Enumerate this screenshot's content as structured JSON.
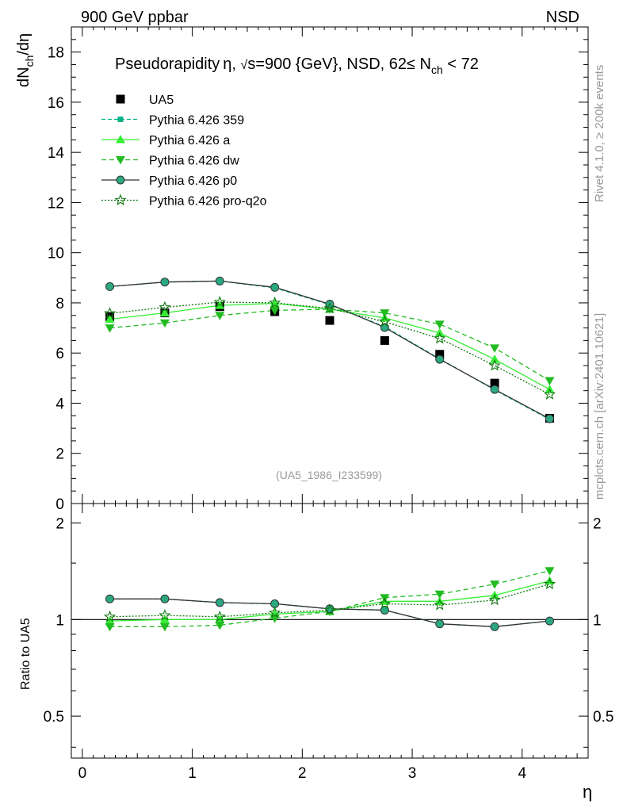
{
  "header": {
    "left": "900 GeV ppbar",
    "right": "NSD"
  },
  "side": {
    "rivet": "Rivet 4.1.0, ≥ 200k events",
    "mcplots": "mcplots.cern.ch [arXiv:2401.10621]"
  },
  "chart_data": [
    {
      "type": "line",
      "panel": "main",
      "title": "Pseudorapidity η, √s=900 {GeV}, NSD, 62≤ N_ch < 72",
      "title_parts": {
        "prefix": "Pseudorapidity η, ",
        "sqrt": "√",
        "mid": "s=900 {GeV}, NSD, 62≤ N",
        "sub": "ch",
        "suffix": " < 72"
      },
      "ylabel": "dN_ch/dη",
      "ylabel_parts": {
        "a": "dN",
        "sub": "ch",
        "b": "/dη"
      },
      "xlabel": "η",
      "annotation": "(UA5_1986_I233599)",
      "xlim": [
        -0.1,
        4.6
      ],
      "ylim": [
        0,
        19
      ],
      "x_ticks": [
        0,
        1,
        2,
        3,
        4
      ],
      "y_ticks": [
        0,
        2,
        4,
        6,
        8,
        10,
        12,
        14,
        16,
        18
      ],
      "x_tick_labels": [
        "0",
        "1",
        "2",
        "3",
        "4"
      ],
      "y_tick_labels": [
        "0",
        "2",
        "4",
        "6",
        "8",
        "10",
        "12",
        "14",
        "16",
        "18"
      ],
      "x": [
        0.25,
        0.75,
        1.25,
        1.75,
        2.25,
        2.75,
        3.25,
        3.75,
        4.25
      ],
      "series": [
        {
          "name": "UA5",
          "kind": "data",
          "color": "#000000",
          "marker": "square",
          "values": [
            7.45,
            7.6,
            7.85,
            7.65,
            7.3,
            6.5,
            5.95,
            4.8,
            3.4
          ]
        },
        {
          "name": "Pythia 6.426 359",
          "color": "#00b386",
          "marker": "square-small",
          "dash": "5,3",
          "values": [
            8.65,
            8.83,
            8.87,
            8.6,
            7.93,
            7.05,
            5.77,
            4.53,
            3.35
          ]
        },
        {
          "name": "Pythia 6.426 a",
          "color": "#33ee33",
          "marker": "triangle-up",
          "dash": "",
          "values": [
            7.35,
            7.6,
            7.9,
            7.98,
            7.75,
            7.4,
            6.8,
            5.75,
            4.55
          ]
        },
        {
          "name": "Pythia 6.426 dw",
          "color": "#22bb22",
          "marker": "triangle-down",
          "dash": "6,4",
          "values": [
            7.0,
            7.2,
            7.5,
            7.7,
            7.75,
            7.6,
            7.15,
            6.2,
            4.9
          ]
        },
        {
          "name": "Pythia 6.426 p0",
          "color": "#333333",
          "marker": "circle-open",
          "dash": "",
          "values": [
            8.65,
            8.83,
            8.87,
            8.62,
            7.95,
            7.02,
            5.75,
            4.55,
            3.38
          ]
        },
        {
          "name": "Pythia 6.426 pro-q2o",
          "color": "#117711",
          "marker": "star",
          "dash": "2,2",
          "values": [
            7.58,
            7.82,
            8.03,
            8.0,
            7.78,
            7.25,
            6.58,
            5.5,
            4.35
          ]
        }
      ]
    },
    {
      "type": "line",
      "panel": "ratio",
      "ylabel": "Ratio to UA5",
      "xlim": [
        -0.1,
        4.6
      ],
      "ylim": [
        0.37,
        2.3
      ],
      "y_scale": "log",
      "y_ticks": [
        0.5,
        1,
        2
      ],
      "y_tick_labels": [
        "0.5",
        "1",
        "2"
      ],
      "reference": 1,
      "x": [
        0.25,
        0.75,
        1.25,
        1.75,
        2.25,
        2.75,
        3.25,
        3.75,
        4.25
      ],
      "series": [
        {
          "name": "Pythia 6.426 359",
          "color": "#00b386",
          "marker": "square-small",
          "dash": "5,3",
          "values": [
            1.16,
            1.16,
            1.13,
            1.12,
            1.08,
            1.07,
            0.97,
            0.95,
            0.99
          ]
        },
        {
          "name": "Pythia 6.426 a",
          "color": "#33ee33",
          "marker": "triangle-up",
          "dash": "",
          "values": [
            0.99,
            1.0,
            1.0,
            1.04,
            1.06,
            1.14,
            1.14,
            1.19,
            1.32
          ]
        },
        {
          "name": "Pythia 6.426 dw",
          "color": "#22bb22",
          "marker": "triangle-down",
          "dash": "6,4",
          "values": [
            0.95,
            0.95,
            0.96,
            1.01,
            1.06,
            1.17,
            1.2,
            1.29,
            1.42
          ]
        },
        {
          "name": "Pythia 6.426 p0",
          "color": "#333333",
          "marker": "circle-open",
          "dash": "",
          "values": [
            1.16,
            1.16,
            1.13,
            1.12,
            1.08,
            1.07,
            0.97,
            0.95,
            0.99
          ]
        },
        {
          "name": "Pythia 6.426 pro-q2o",
          "color": "#117711",
          "marker": "star",
          "dash": "2,2",
          "values": [
            1.02,
            1.03,
            1.02,
            1.05,
            1.07,
            1.12,
            1.11,
            1.15,
            1.29
          ]
        }
      ]
    }
  ]
}
